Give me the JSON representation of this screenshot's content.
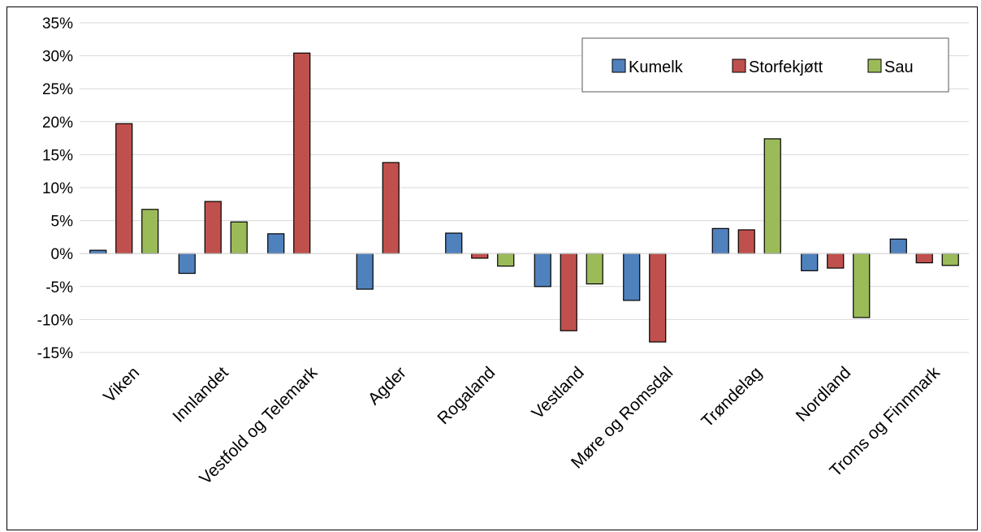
{
  "chart_data": {
    "type": "bar",
    "categories": [
      "Viken",
      "Innlandet",
      "Vestfold og Telemark",
      "Agder",
      "Rogaland",
      "Vestland",
      "Møre og Romsdal",
      "Trøndelag",
      "Nordland",
      "Troms og Finnmark"
    ],
    "series": [
      {
        "name": "Kumelk",
        "color": "#4f81bd",
        "values": [
          0.5,
          -3.0,
          3.0,
          -5.4,
          3.1,
          -5.0,
          -7.1,
          3.8,
          -2.6,
          2.2
        ]
      },
      {
        "name": "Storfekjøtt",
        "color": "#c0504d",
        "values": [
          19.7,
          7.9,
          30.4,
          13.8,
          -0.7,
          -11.7,
          -13.4,
          3.6,
          -2.2,
          -1.4
        ]
      },
      {
        "name": "Sau",
        "color": "#9bbb59",
        "values": [
          6.7,
          4.8,
          null,
          null,
          -1.9,
          -4.6,
          null,
          17.4,
          -9.7,
          -1.8
        ]
      }
    ],
    "yticks": [
      "35%",
      "30%",
      "25%",
      "20%",
      "15%",
      "10%",
      "5%",
      "0%",
      "-5%",
      "-10%",
      "-15%"
    ],
    "ylim": [
      -15,
      35
    ],
    "grid": true,
    "legend": "top-right"
  }
}
